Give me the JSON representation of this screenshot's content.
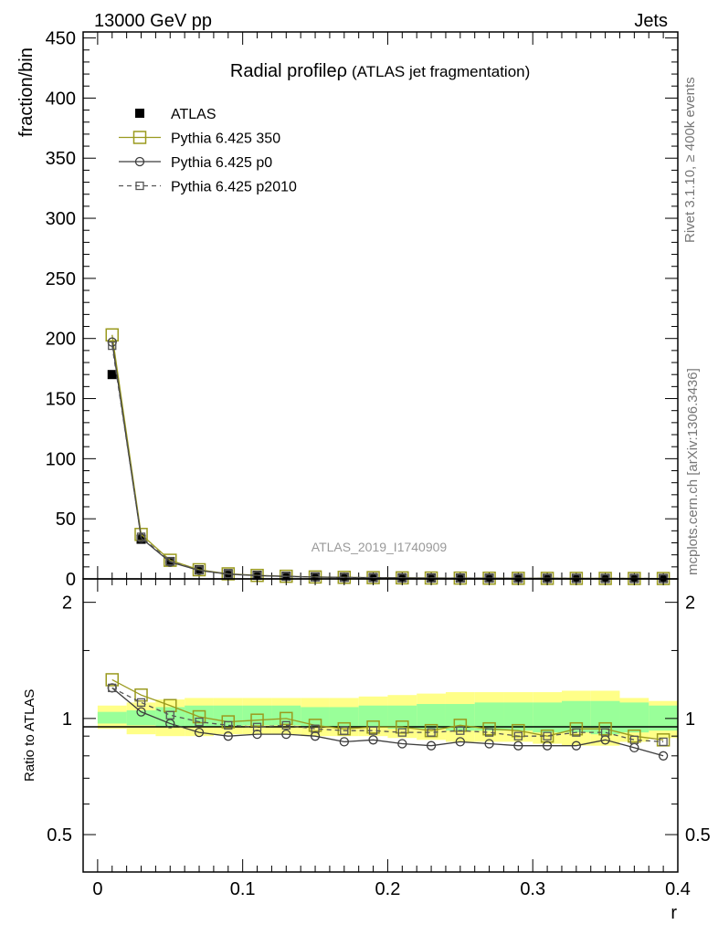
{
  "header": {
    "left": "13000 GeV pp",
    "right": "Jets"
  },
  "side_labels": {
    "rivet": "Rivet 3.1.10, ≥ 400k events",
    "mcplots": "mcplots.cern.ch [arXiv:1306.3436]"
  },
  "colors": {
    "atlas": "#000000",
    "p350": "#9a9a1e",
    "p0": "#3c3c3c",
    "p2010": "#555555",
    "band_inner": "#99ff99",
    "band_outer": "#ffff88"
  },
  "chart_data": [
    {
      "type": "line",
      "title": "Radial profileρ",
      "subtitle": "(ATLAS jet fragmentation)",
      "watermark": "ATLAS_2019_I1740909",
      "ylabel": "fraction/bin",
      "xlim": [
        -0.01,
        0.4
      ],
      "ylim": [
        0,
        455
      ],
      "yticks": [
        0,
        50,
        100,
        150,
        200,
        250,
        300,
        350,
        400,
        450
      ],
      "legend_position": "top-left",
      "x": [
        0.01,
        0.03,
        0.05,
        0.07,
        0.09,
        0.11,
        0.13,
        0.15,
        0.17,
        0.19,
        0.21,
        0.23,
        0.25,
        0.27,
        0.29,
        0.31,
        0.33,
        0.35,
        0.37,
        0.39
      ],
      "series": [
        {
          "name": "ATLAS",
          "marker": "filled-square",
          "values": [
            170,
            33,
            14.5,
            7.5,
            4.3,
            3.0,
            2.2,
            1.7,
            1.35,
            1.1,
            0.92,
            0.8,
            0.7,
            0.62,
            0.55,
            0.5,
            0.46,
            0.42,
            0.38,
            0.35
          ]
        },
        {
          "name": "Pythia 6.425 350",
          "marker": "open-square-large",
          "line": "solid",
          "values": [
            203,
            37,
            15.5,
            7.6,
            4.2,
            2.9,
            2.2,
            1.6,
            1.28,
            1.05,
            0.87,
            0.75,
            0.67,
            0.58,
            0.5,
            0.45,
            0.43,
            0.39,
            0.34,
            0.31
          ]
        },
        {
          "name": "Pythia 6.425 p0",
          "marker": "open-circle",
          "line": "solid",
          "values": [
            197,
            34,
            14.0,
            7.0,
            3.9,
            2.75,
            2.03,
            1.53,
            1.18,
            0.98,
            0.8,
            0.69,
            0.61,
            0.54,
            0.47,
            0.43,
            0.39,
            0.37,
            0.32,
            0.28
          ]
        },
        {
          "name": "Pythia 6.425 p2010",
          "marker": "open-square-small",
          "line": "dashed",
          "values": [
            194,
            35,
            14.6,
            7.2,
            4.1,
            2.85,
            2.1,
            1.6,
            1.25,
            1.02,
            0.85,
            0.73,
            0.65,
            0.57,
            0.49,
            0.45,
            0.42,
            0.38,
            0.33,
            0.3
          ]
        }
      ]
    },
    {
      "type": "line",
      "ylabel": "Ratio to ATLAS",
      "xlabel": "r",
      "yscale": "log",
      "xlim": [
        -0.01,
        0.4
      ],
      "ylim": [
        0.4,
        2.3
      ],
      "yticks": [
        0.5,
        1,
        2
      ],
      "xticks": [
        0,
        0.1,
        0.2,
        0.3,
        0.4
      ],
      "x": [
        0.01,
        0.03,
        0.05,
        0.07,
        0.09,
        0.11,
        0.13,
        0.15,
        0.17,
        0.19,
        0.21,
        0.23,
        0.25,
        0.27,
        0.29,
        0.31,
        0.33,
        0.35,
        0.37,
        0.39
      ],
      "bands": {
        "inner": {
          "lo": [
            0.97,
            0.96,
            0.95,
            0.95,
            0.95,
            0.96,
            0.96,
            0.95,
            0.95,
            0.95,
            0.94,
            0.94,
            0.93,
            0.93,
            0.93,
            0.92,
            0.92,
            0.91,
            0.92,
            0.93
          ],
          "hi": [
            1.04,
            1.05,
            1.07,
            1.08,
            1.08,
            1.08,
            1.08,
            1.07,
            1.07,
            1.08,
            1.08,
            1.09,
            1.09,
            1.1,
            1.1,
            1.1,
            1.11,
            1.11,
            1.1,
            1.08
          ]
        },
        "outer": {
          "lo": [
            0.94,
            0.91,
            0.9,
            0.9,
            0.91,
            0.91,
            0.91,
            0.9,
            0.9,
            0.9,
            0.89,
            0.88,
            0.87,
            0.87,
            0.87,
            0.86,
            0.85,
            0.85,
            0.87,
            0.89
          ],
          "hi": [
            1.08,
            1.1,
            1.12,
            1.13,
            1.13,
            1.13,
            1.13,
            1.13,
            1.13,
            1.14,
            1.15,
            1.16,
            1.17,
            1.17,
            1.17,
            1.17,
            1.18,
            1.18,
            1.13,
            1.11
          ]
        }
      },
      "series": [
        {
          "name": "Pythia 6.425 350",
          "marker": "open-square-large",
          "line": "solid",
          "values": [
            1.26,
            1.15,
            1.08,
            1.01,
            0.98,
            0.99,
            1.0,
            0.96,
            0.94,
            0.95,
            0.95,
            0.93,
            0.96,
            0.94,
            0.93,
            0.9,
            0.94,
            0.94,
            0.9,
            0.88
          ]
        },
        {
          "name": "Pythia 6.425 p0",
          "marker": "open-circle",
          "line": "solid",
          "values": [
            1.2,
            1.04,
            0.97,
            0.92,
            0.9,
            0.91,
            0.91,
            0.9,
            0.87,
            0.88,
            0.86,
            0.85,
            0.87,
            0.86,
            0.85,
            0.85,
            0.85,
            0.88,
            0.84,
            0.8
          ]
        },
        {
          "name": "Pythia 6.425 p2010",
          "marker": "open-square-small",
          "line": "dashed",
          "values": [
            1.2,
            1.1,
            1.02,
            0.98,
            0.96,
            0.95,
            0.96,
            0.94,
            0.93,
            0.93,
            0.92,
            0.92,
            0.93,
            0.92,
            0.9,
            0.9,
            0.92,
            0.92,
            0.88,
            0.87
          ]
        }
      ]
    }
  ]
}
